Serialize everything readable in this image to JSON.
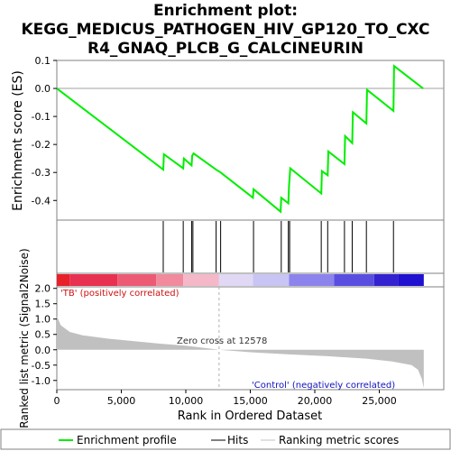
{
  "title_lines": [
    "Enrichment plot:",
    "KEGG_MEDICUS_PATHOGEN_HIV_GP120_TO_CXC",
    "R4_GNAQ_PLCB_G_CALCINEURIN"
  ],
  "chart_data": {
    "type": "line",
    "title": "Enrichment plot: KEGG_MEDICUS_PATHOGEN_HIV_GP120_TO_CXCR4_GNAQ_PLCB_G_CALCINEURIN",
    "xlabel": "Rank in Ordered Dataset",
    "xlim": [
      0,
      30000
    ],
    "x_ticks": [
      0,
      5000,
      10000,
      15000,
      20000,
      25000
    ],
    "x_tick_labels": [
      "0",
      "5,000",
      "10,000",
      "15,000",
      "20,000",
      "25,000"
    ],
    "panels": {
      "enrichment": {
        "ylabel": "Enrichment score (ES)",
        "ylim": [
          -0.47,
          0.1
        ],
        "y_ticks": [
          0.1,
          0.0,
          -0.1,
          -0.2,
          -0.3,
          -0.4
        ],
        "y_tick_labels": [
          "0.1",
          "0.0",
          "-0.1",
          "-0.2",
          "-0.3",
          "-0.4"
        ],
        "series_color": "#00ee00",
        "points": [
          [
            0,
            0.0
          ],
          [
            8250,
            -0.29
          ],
          [
            8300,
            -0.235
          ],
          [
            9800,
            -0.285
          ],
          [
            9850,
            -0.25
          ],
          [
            10450,
            -0.275
          ],
          [
            10500,
            -0.24
          ],
          [
            10600,
            -0.232
          ],
          [
            12350,
            -0.29
          ],
          [
            12700,
            -0.3
          ],
          [
            15200,
            -0.39
          ],
          [
            15250,
            -0.36
          ],
          [
            17350,
            -0.44
          ],
          [
            17400,
            -0.39
          ],
          [
            17950,
            -0.41
          ],
          [
            18000,
            -0.35
          ],
          [
            18100,
            -0.285
          ],
          [
            20500,
            -0.375
          ],
          [
            20550,
            -0.295
          ],
          [
            21000,
            -0.31
          ],
          [
            21050,
            -0.225
          ],
          [
            22300,
            -0.27
          ],
          [
            22350,
            -0.17
          ],
          [
            22900,
            -0.195
          ],
          [
            22950,
            -0.085
          ],
          [
            24000,
            -0.125
          ],
          [
            24050,
            -0.005
          ],
          [
            26100,
            -0.08
          ],
          [
            26150,
            0.08
          ],
          [
            28400,
            0.0
          ]
        ]
      },
      "hits": {
        "positions": [
          8250,
          9800,
          10450,
          10550,
          12350,
          12700,
          15250,
          17400,
          17950,
          18050,
          20500,
          21000,
          22300,
          22900,
          24000,
          26100
        ]
      },
      "ranked_metric": {
        "ylabel": "Ranked list metric (Signal2Noise)",
        "ylim": [
          -1.3,
          2.05
        ],
        "y_ticks": [
          2.0,
          1.5,
          1.0,
          0.5,
          0.0,
          -0.5,
          -1.0
        ],
        "y_tick_labels": [
          "2.0",
          "1.5",
          "1.0",
          "0.5",
          "0.0",
          "-0.5",
          "-1.0"
        ],
        "fill_color": "#c0c0c0",
        "profile": [
          [
            0,
            1.1
          ],
          [
            300,
            0.8
          ],
          [
            1000,
            0.58
          ],
          [
            2000,
            0.47
          ],
          [
            4000,
            0.36
          ],
          [
            6000,
            0.28
          ],
          [
            8000,
            0.2
          ],
          [
            10000,
            0.13
          ],
          [
            12578,
            0.0
          ],
          [
            15000,
            -0.08
          ],
          [
            18000,
            -0.15
          ],
          [
            21000,
            -0.21
          ],
          [
            24000,
            -0.29
          ],
          [
            26000,
            -0.38
          ],
          [
            27500,
            -0.5
          ],
          [
            28000,
            -0.65
          ],
          [
            28300,
            -0.95
          ],
          [
            28450,
            -1.25
          ]
        ]
      }
    },
    "zero_cross": 12578,
    "dataset_size": 28450,
    "annotations": {
      "zero_cross_label": "Zero cross at 12578",
      "positive_label": "'TB' (positively correlated)",
      "negative_label": "'Control' (negatively correlated)"
    },
    "legend": {
      "placement": "bottom",
      "items": [
        {
          "label": "Enrichment profile",
          "color": "#00ee00"
        },
        {
          "label": "Hits",
          "color": "#000000"
        },
        {
          "label": "Ranking metric scores",
          "color": "#c0c0c0"
        }
      ]
    },
    "colors": {
      "positive_band": "#e8202a",
      "negative_band": "#2010d0",
      "positive_label": "#d01010",
      "negative_label": "#1010c0",
      "frame": "#808080"
    }
  }
}
